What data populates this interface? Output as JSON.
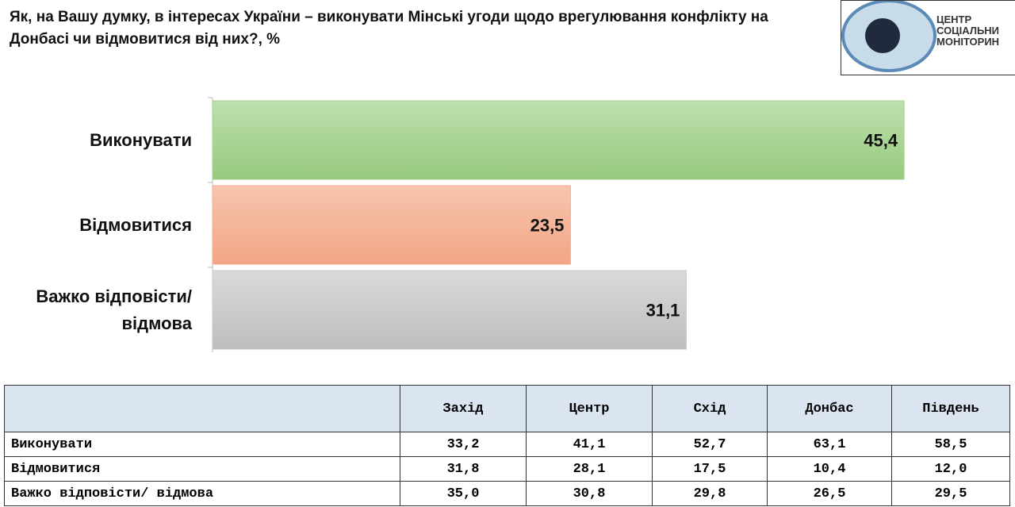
{
  "title": "Як, на Вашу думку, в інтересах України – виконувати  Мінські угоди щодо врегулювання конфлікту на Донбасі чи відмовитися від них?, %",
  "logo": {
    "lines": [
      "ЦЕНТР",
      "СОЦІАЛЬНИ",
      "МОНІТОРИН"
    ]
  },
  "chart_data": {
    "type": "hbar",
    "categories": [
      "Виконувати",
      "Відмовитися",
      "Важко відповісти/ відмова"
    ],
    "values": [
      45.4,
      23.5,
      31.1
    ],
    "value_labels": [
      "45,4",
      "23,5",
      "31,1"
    ],
    "colors": [
      "#a6d08e",
      "#f4ae90",
      "#c8c8c8"
    ]
  },
  "table": {
    "columns": [
      "Захід",
      "Центр",
      "Схід",
      "Донбас",
      "Південь"
    ],
    "rows": [
      [
        "Виконувати",
        "33,2",
        "41,1",
        "52,7",
        "63,1",
        "58,5"
      ],
      [
        "Відмовитися",
        "31,8",
        "28,1",
        "17,5",
        "10,4",
        "12,0"
      ],
      [
        "Важко відповісти/ відмова",
        "35,0",
        "30,8",
        "29,8",
        "26,5",
        "29,5"
      ]
    ]
  }
}
